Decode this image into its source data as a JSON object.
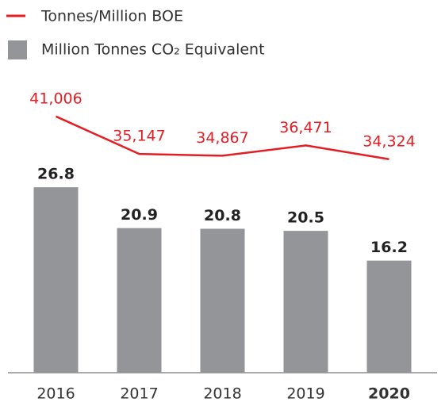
{
  "chart_data": {
    "type": "bar",
    "categories": [
      "2016",
      "2017",
      "2018",
      "2019",
      "2020"
    ],
    "series": [
      {
        "name": "Million Tonnes CO₂ Equivalent",
        "type": "bar",
        "color": "#939598",
        "values": [
          26.8,
          20.9,
          20.8,
          20.5,
          16.2
        ]
      },
      {
        "name": "Tonnes/Million BOE",
        "type": "line",
        "axis": "y2",
        "color": "#e31e24",
        "values": [
          41006,
          35147,
          34867,
          36471,
          34324
        ],
        "value_labels": [
          "41,006",
          "35,147",
          "34,867",
          "36,471",
          "34,324"
        ]
      }
    ],
    "ylim": [
      0,
      42.4
    ],
    "y2lim": [
      1000,
      46800
    ],
    "legend": "top-left"
  }
}
